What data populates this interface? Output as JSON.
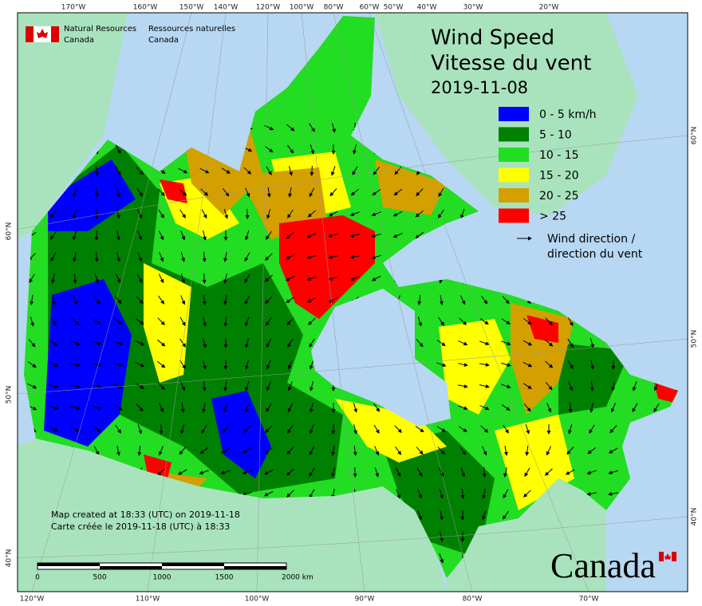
{
  "header": {
    "agency_en": "Natural Resources",
    "country_en": "Canada",
    "agency_fr": "Ressources naturelles",
    "country_fr": "Canada"
  },
  "title": {
    "line1": "Wind Speed",
    "line2": "Vitesse du vent",
    "date": "2019-11-08"
  },
  "legend": {
    "items": [
      {
        "label": "0 - 5 km/h",
        "color": "#0000ff"
      },
      {
        "label": "5 - 10",
        "color": "#008000"
      },
      {
        "label": "10 - 15",
        "color": "#22dd22"
      },
      {
        "label": "15 - 20",
        "color": "#ffff00"
      },
      {
        "label": "20 - 25",
        "color": "#d4a000"
      },
      {
        "label": "> 25",
        "color": "#ff0000"
      }
    ],
    "direction_line1": "Wind direction /",
    "direction_line2": "direction du vent"
  },
  "graticule": {
    "top": [
      "170°W",
      "160°W",
      "150°W",
      "140°W",
      "120°W",
      "100°W",
      "80°W",
      "60°W",
      "50°W",
      "40°W",
      "30°W",
      "20°W"
    ],
    "bottom": [
      "120°W",
      "110°W",
      "100°W",
      "90°W",
      "80°W",
      "70°W"
    ],
    "left": [
      "60°N",
      "50°N",
      "40°N"
    ],
    "right": [
      "60°N",
      "50°N",
      "40°N"
    ]
  },
  "footer": {
    "created_en": "Map created at 18:33 (UTC) on 2019-11-18",
    "created_fr": "Carte créée le 2019-11-18 (UTC) à 18:33"
  },
  "scale_bar": {
    "labels": [
      "0",
      "500",
      "1000",
      "1500",
      "2000 km"
    ]
  },
  "wordmark": "Canada"
}
